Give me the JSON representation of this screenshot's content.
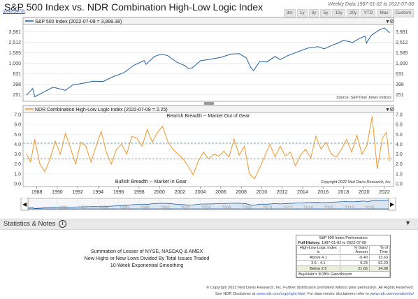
{
  "header": {
    "title": "S&P 500 Index vs. NDR Combination High-Low Logic Index",
    "code": "(DAVIS478)",
    "data_info": "Weekly Data 1987-01-02 to 2022-07-08",
    "timeframes": [
      "3m",
      "1y",
      "3y",
      "5y",
      "10y",
      "20y",
      "YTD",
      "Max",
      "Custom"
    ]
  },
  "colors": {
    "spx_line": "#1f5fa0",
    "hl_line": "#f0962a",
    "threshold": "#3a8aa6",
    "axis": "#555555"
  },
  "top_panel": {
    "legend": "S&P 500 Index (2022-07-08 = 3,899.38)",
    "source": "Source:   S&P Dow Jones Indices"
  },
  "bottom_panel": {
    "legend": "NDR Combination High-Low Logic Index (2022-07-08 = 2.25)",
    "bearish_label": "Bearish Breadth -- Market Out of Gear",
    "bullish_label": "Bullish Breadth -- Market In Gear",
    "copyright": "Copyright 2022 Ned Davis Research, Inc."
  },
  "stats": {
    "title": "Statistics & Notes",
    "info_glyph": "i",
    "notes": [
      "Summation of Lesser of NYSE, NASDAQ & AMEX",
      "New Highs or New Lows Divided By Total Issues Traded",
      "10-Week Exponential Smoothing"
    ],
    "perf": {
      "title": "S&P 500 Index Performance",
      "history_label": "Full History:",
      "history_value": "1987-01-02 to 2022-07-08",
      "col1": "High-Low Logic Index is",
      "col2": "% Gain/ Annum",
      "col3": "% of Time",
      "rows": [
        {
          "label": "Above 4.1",
          "gain": "-6.40",
          "time": "23.63"
        },
        {
          "label": "2.5 - 4.1",
          "gain": "9.23",
          "time": "52.29"
        },
        {
          "label": "Below 2.5",
          "gain": "21.65",
          "time": "24.08"
        }
      ],
      "buyhold": "Buy/Hold = 8.08% Gain/Annum"
    }
  },
  "footer": {
    "line1": "© Copyright 2022 Ned Davis Research, Inc. Further distribution prohibited without prior permission. All Rights Reserved.",
    "line2_pre": "See NDR Disclaimer at ",
    "link1": "www.ndr.com/copyright.html",
    "line2_mid": ". For data vendor disclaimers refer to ",
    "link2": "www.ndr.com/vendorinfo/"
  },
  "chart_data": [
    {
      "type": "line",
      "title": "S&P 500 Index",
      "y_scale": "log",
      "yticks": [
        251,
        398,
        631,
        1000,
        1585,
        2512,
        3981
      ],
      "ytick_labels": [
        "251",
        "398",
        "631",
        "1,000",
        "1,585",
        "2,512",
        "3,981"
      ],
      "ylim": [
        200,
        5200
      ],
      "x": [
        1987.0,
        1987.6,
        1987.8,
        1988.5,
        1989.6,
        1990.8,
        1991.5,
        1992.5,
        1993.5,
        1994.5,
        1995.5,
        1996.5,
        1997.5,
        1998.5,
        1998.7,
        1999.5,
        2000.2,
        2000.8,
        2001.7,
        2002.5,
        2002.8,
        2003.2,
        2004.0,
        2005.0,
        2006.0,
        2007.0,
        2007.8,
        2008.5,
        2008.9,
        2009.2,
        2009.8,
        2010.5,
        2011.3,
        2011.8,
        2012.5,
        2013.5,
        2014.5,
        2015.5,
        2016.1,
        2016.8,
        2017.5,
        2018.0,
        2018.9,
        2019.5,
        2020.1,
        2020.25,
        2020.7,
        2021.5,
        2022.0,
        2022.5
      ],
      "series": [
        {
          "values": [
            246,
            330,
            230,
            270,
            350,
            305,
            385,
            415,
            455,
            450,
            560,
            660,
            920,
            1130,
            960,
            1350,
            1500,
            1400,
            1050,
            900,
            800,
            820,
            1120,
            1200,
            1300,
            1500,
            1530,
            1260,
            850,
            720,
            1080,
            1060,
            1350,
            1180,
            1390,
            1650,
            1950,
            2080,
            1900,
            2180,
            2450,
            2750,
            2500,
            2950,
            3300,
            2450,
            3400,
            4350,
            4750,
            3850
          ]
        }
      ]
    },
    {
      "type": "line",
      "title": "NDR Combination High-Low Logic Index",
      "yticks": [
        0.0,
        1.0,
        2.0,
        3.0,
        4.0,
        5.0,
        6.0,
        7.0
      ],
      "ytick_labels": [
        "0.0",
        "1.0",
        "2.0",
        "3.0",
        "4.0",
        "5.0",
        "6.0",
        "7.0"
      ],
      "ylim": [
        0,
        7
      ],
      "thresholds": [
        4.1,
        2.5
      ],
      "x_ticks": [
        1988,
        1990,
        1992,
        1994,
        1996,
        1998,
        2000,
        2002,
        2004,
        2006,
        2008,
        2010,
        2012,
        2014,
        2016,
        2018,
        2020,
        2022
      ],
      "x": [
        1987.0,
        1987.4,
        1987.8,
        1988.3,
        1988.8,
        1989.3,
        1989.8,
        1990.3,
        1990.8,
        1991.3,
        1991.8,
        1992.3,
        1992.8,
        1993.3,
        1993.8,
        1994.3,
        1994.8,
        1995.3,
        1995.8,
        1996.3,
        1996.8,
        1997.3,
        1997.8,
        1998.3,
        1998.8,
        1999.3,
        1999.8,
        2000.3,
        2000.8,
        2001.3,
        2001.8,
        2002.3,
        2002.8,
        2003.3,
        2003.8,
        2004.3,
        2004.8,
        2005.3,
        2005.8,
        2006.3,
        2006.8,
        2007.3,
        2007.8,
        2008.3,
        2008.8,
        2009.3,
        2009.8,
        2010.3,
        2010.8,
        2011.3,
        2011.8,
        2012.3,
        2012.8,
        2013.3,
        2013.8,
        2014.3,
        2014.8,
        2015.3,
        2015.8,
        2016.3,
        2016.8,
        2017.3,
        2017.8,
        2018.3,
        2018.8,
        2019.3,
        2019.8,
        2020.3,
        2020.8,
        2021.3,
        2021.8,
        2022.2,
        2022.5
      ],
      "series": [
        {
          "values": [
            3.0,
            2.2,
            4.5,
            2.0,
            1.2,
            2.5,
            4.3,
            3.0,
            5.1,
            3.6,
            2.0,
            4.2,
            3.8,
            2.2,
            3.8,
            5.3,
            3.2,
            2.0,
            3.5,
            4.0,
            3.0,
            4.8,
            4.6,
            3.8,
            5.5,
            4.2,
            5.2,
            5.8,
            4.3,
            3.5,
            3.0,
            2.5,
            1.8,
            0.9,
            2.3,
            3.2,
            2.5,
            3.0,
            2.8,
            3.3,
            2.7,
            4.5,
            2.9,
            3.8,
            1.0,
            0.5,
            1.6,
            2.8,
            4.0,
            2.7,
            3.8,
            2.8,
            3.2,
            1.8,
            2.9,
            3.5,
            2.6,
            4.8,
            3.5,
            4.2,
            3.0,
            2.7,
            3.5,
            4.5,
            3.2,
            4.9,
            3.0,
            3.9,
            6.8,
            1.5,
            4.6,
            5.2,
            2.25
          ]
        }
      ]
    }
  ]
}
